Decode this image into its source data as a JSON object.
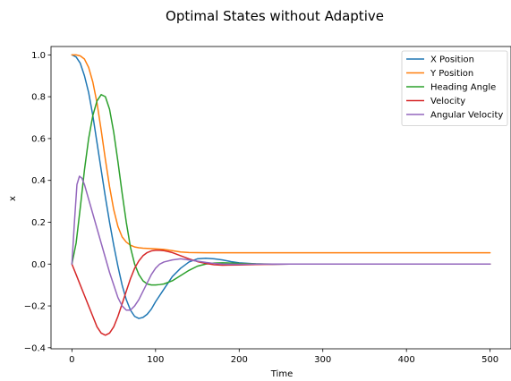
{
  "chart_data": {
    "type": "line",
    "title": "Optimal States without Adaptive",
    "xlabel": "Time",
    "ylabel": "x",
    "xlim": [
      -25,
      525
    ],
    "ylim": [
      -0.405,
      1.04
    ],
    "xticks": [
      0,
      100,
      200,
      300,
      400,
      500
    ],
    "yticks": [
      -0.4,
      -0.2,
      0.0,
      0.2,
      0.4,
      0.6,
      0.8,
      1.0
    ],
    "xtick_labels": [
      "0",
      "100",
      "200",
      "300",
      "400",
      "500"
    ],
    "ytick_labels": [
      "−0.4",
      "−0.2",
      "0.0",
      "0.2",
      "0.4",
      "0.6",
      "0.8",
      "1.0"
    ],
    "grid": false,
    "legend_position": "top-right",
    "series": [
      {
        "name": "X Position",
        "color": "#1f77b4",
        "x": [
          0,
          5,
          10,
          15,
          20,
          25,
          30,
          35,
          40,
          45,
          50,
          55,
          60,
          65,
          70,
          75,
          80,
          85,
          90,
          95,
          100,
          110,
          120,
          130,
          140,
          150,
          160,
          170,
          180,
          190,
          200,
          220,
          240,
          260,
          300,
          400,
          500
        ],
        "y": [
          1.0,
          0.99,
          0.96,
          0.9,
          0.82,
          0.71,
          0.58,
          0.45,
          0.32,
          0.2,
          0.09,
          -0.01,
          -0.1,
          -0.17,
          -0.22,
          -0.25,
          -0.26,
          -0.255,
          -0.24,
          -0.215,
          -0.18,
          -0.12,
          -0.06,
          -0.02,
          0.01,
          0.025,
          0.028,
          0.025,
          0.02,
          0.012,
          0.006,
          0.001,
          -0.001,
          0.0,
          0.0,
          0.0,
          0.0
        ]
      },
      {
        "name": "Y Position",
        "color": "#ff7f0e",
        "x": [
          0,
          5,
          10,
          15,
          20,
          25,
          30,
          35,
          40,
          45,
          50,
          55,
          60,
          65,
          70,
          75,
          80,
          85,
          90,
          100,
          110,
          120,
          130,
          140,
          160,
          200,
          300,
          400,
          500
        ],
        "y": [
          1.0,
          1.0,
          0.995,
          0.98,
          0.94,
          0.87,
          0.77,
          0.64,
          0.5,
          0.37,
          0.26,
          0.18,
          0.13,
          0.105,
          0.09,
          0.082,
          0.078,
          0.076,
          0.075,
          0.073,
          0.07,
          0.064,
          0.058,
          0.055,
          0.054,
          0.054,
          0.054,
          0.054,
          0.054
        ]
      },
      {
        "name": "Heading Angle",
        "color": "#2ca02c",
        "x": [
          0,
          5,
          10,
          15,
          20,
          25,
          30,
          35,
          40,
          45,
          50,
          55,
          60,
          65,
          70,
          75,
          80,
          85,
          90,
          95,
          100,
          105,
          110,
          120,
          130,
          140,
          150,
          160,
          170,
          180,
          190,
          200,
          220,
          240,
          260,
          300,
          400,
          500
        ],
        "y": [
          0.0,
          0.1,
          0.27,
          0.45,
          0.6,
          0.71,
          0.78,
          0.81,
          0.8,
          0.74,
          0.63,
          0.49,
          0.34,
          0.2,
          0.08,
          0.0,
          -0.05,
          -0.08,
          -0.095,
          -0.1,
          -0.1,
          -0.098,
          -0.095,
          -0.08,
          -0.055,
          -0.03,
          -0.01,
          0.0,
          0.005,
          0.006,
          0.005,
          0.003,
          0.001,
          0.0,
          0.0,
          0.0,
          0.0,
          0.0
        ]
      },
      {
        "name": "Velocity",
        "color": "#d62728",
        "x": [
          0,
          5,
          10,
          15,
          20,
          25,
          30,
          35,
          40,
          45,
          50,
          55,
          60,
          65,
          70,
          75,
          80,
          85,
          90,
          95,
          100,
          105,
          110,
          115,
          120,
          130,
          140,
          150,
          160,
          170,
          180,
          200,
          220,
          240,
          260,
          300,
          400,
          500
        ],
        "y": [
          0.0,
          -0.05,
          -0.1,
          -0.15,
          -0.2,
          -0.25,
          -0.3,
          -0.33,
          -0.34,
          -0.33,
          -0.3,
          -0.25,
          -0.19,
          -0.13,
          -0.07,
          -0.02,
          0.015,
          0.04,
          0.055,
          0.063,
          0.066,
          0.066,
          0.064,
          0.06,
          0.055,
          0.04,
          0.025,
          0.012,
          0.003,
          -0.003,
          -0.005,
          -0.004,
          -0.002,
          -0.001,
          0.0,
          0.0,
          0.0,
          0.0
        ]
      },
      {
        "name": "Angular Velocity",
        "color": "#9467bd",
        "x": [
          0,
          3,
          6,
          9,
          12,
          15,
          20,
          25,
          30,
          35,
          40,
          45,
          50,
          55,
          60,
          65,
          70,
          75,
          80,
          85,
          90,
          95,
          100,
          105,
          110,
          120,
          130,
          140,
          150,
          160,
          170,
          180,
          200,
          220,
          240,
          260,
          300,
          400,
          500
        ],
        "y": [
          0.0,
          0.2,
          0.38,
          0.42,
          0.41,
          0.38,
          0.31,
          0.24,
          0.17,
          0.1,
          0.03,
          -0.04,
          -0.1,
          -0.16,
          -0.2,
          -0.22,
          -0.22,
          -0.2,
          -0.17,
          -0.13,
          -0.09,
          -0.05,
          -0.02,
          0.0,
          0.01,
          0.02,
          0.025,
          0.02,
          0.014,
          0.008,
          0.003,
          0.0,
          -0.001,
          0.0,
          0.0,
          0.0,
          0.0,
          0.0,
          0.0
        ]
      }
    ]
  }
}
